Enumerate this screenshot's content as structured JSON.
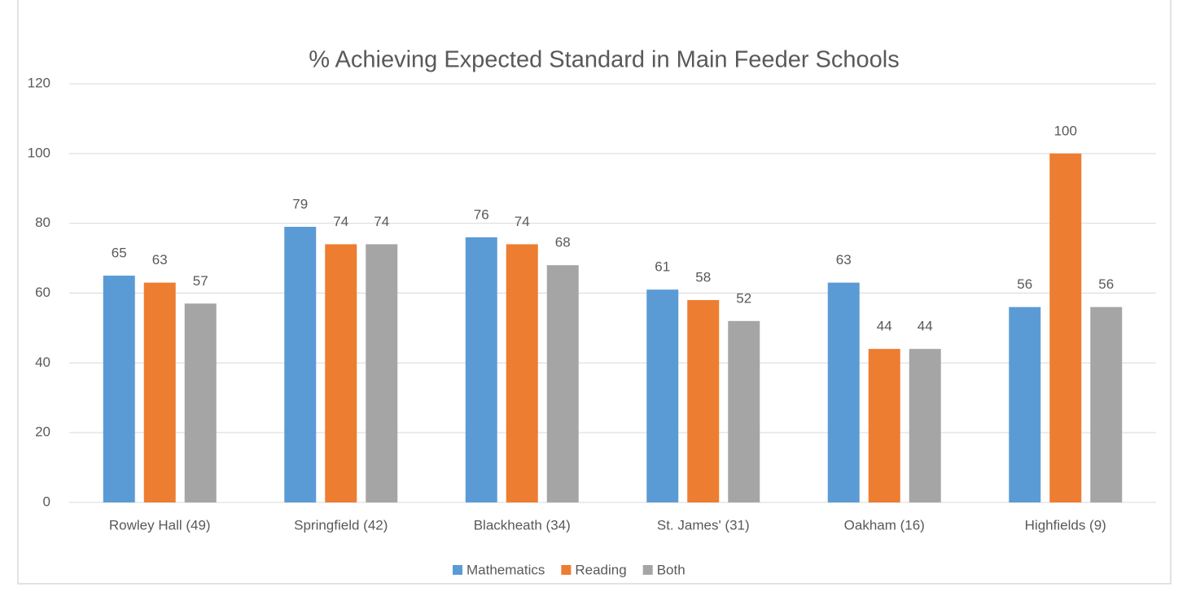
{
  "chart_data": {
    "type": "bar",
    "title": "% Achieving Expected Standard in Main Feeder Schools",
    "categories": [
      "Rowley Hall (49)",
      "Springfield (42)",
      "Blackheath (34)",
      "St. James' (31)",
      "Oakham (16)",
      "Highfields (9)"
    ],
    "series": [
      {
        "name": "Mathematics",
        "color": "#5b9bd5",
        "values": [
          65,
          79,
          76,
          61,
          63,
          56
        ]
      },
      {
        "name": "Reading",
        "color": "#ed7d31",
        "values": [
          63,
          74,
          74,
          58,
          44,
          100
        ]
      },
      {
        "name": "Both",
        "color": "#a5a5a5",
        "values": [
          57,
          74,
          68,
          52,
          44,
          56
        ]
      }
    ],
    "ylim": [
      0,
      120
    ],
    "yticks": [
      0,
      20,
      40,
      60,
      80,
      100,
      120
    ],
    "grid": true,
    "legend": "bottom"
  }
}
